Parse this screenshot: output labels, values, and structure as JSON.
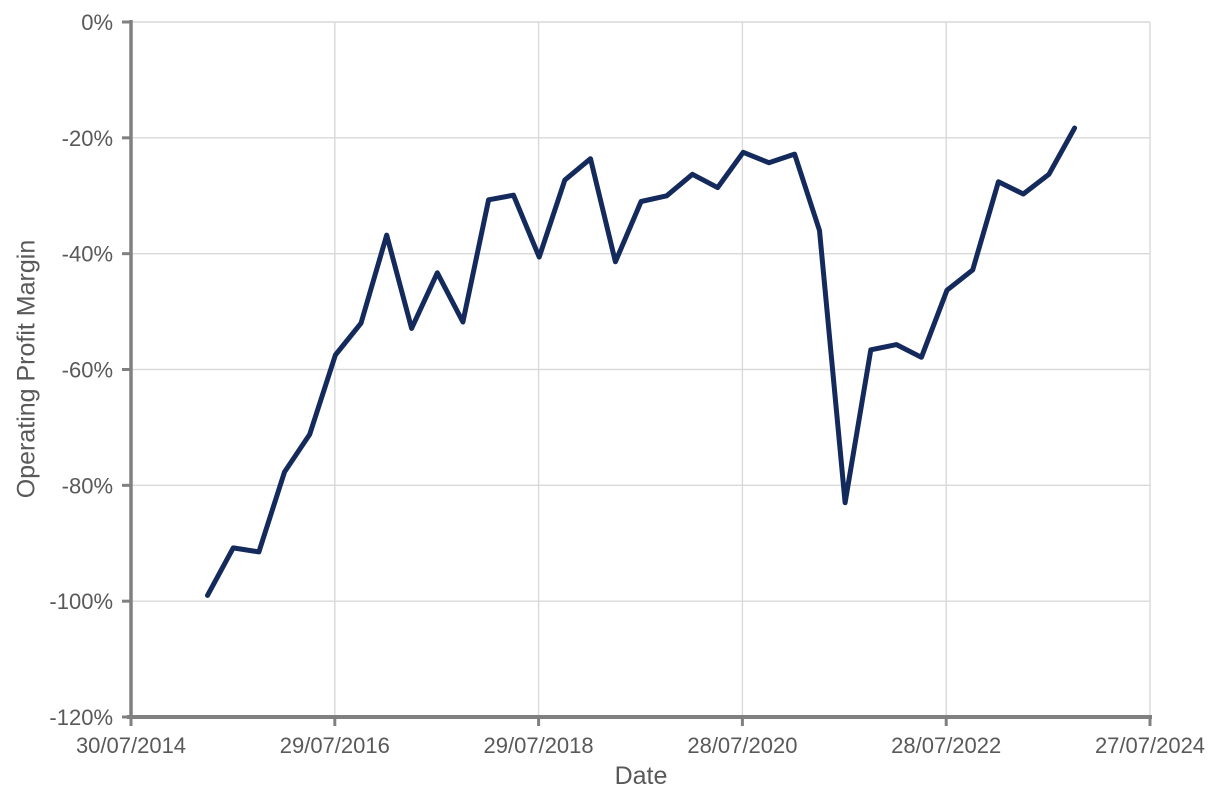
{
  "colors": {
    "line": "#152a5c",
    "grid": "#d9d9d9",
    "axis": "#808080",
    "text": "#595959",
    "background": "#ffffff"
  },
  "chart_data": {
    "type": "line",
    "title": "",
    "xlabel": "Date",
    "ylabel": "Operating Profit Margin",
    "grid": true,
    "legend": "none",
    "ylim": [
      -120,
      0
    ],
    "y_ticks_percent": [
      0,
      -20,
      -40,
      -60,
      -80,
      -100,
      -120
    ],
    "y_tick_labels": [
      "0%",
      "-20%",
      "-40%",
      "-60%",
      "-80%",
      "-100%",
      "-120%"
    ],
    "x_range_dates": [
      "30/07/2014",
      "27/07/2024"
    ],
    "x_tick_labels": [
      "30/07/2014",
      "29/07/2016",
      "29/07/2018",
      "28/07/2020",
      "28/07/2022",
      "27/07/2024"
    ],
    "series": [
      {
        "name": "operating-profit-margin",
        "color": "#152a5c",
        "x_dates": [
          "30/04/2015",
          "31/07/2015",
          "31/10/2015",
          "31/01/2016",
          "30/04/2016",
          "31/07/2016",
          "31/10/2016",
          "31/01/2017",
          "30/04/2017",
          "31/07/2017",
          "31/10/2017",
          "31/01/2018",
          "30/04/2018",
          "31/07/2018",
          "31/10/2018",
          "31/01/2019",
          "30/04/2019",
          "31/07/2019",
          "31/10/2019",
          "31/01/2020",
          "30/04/2020",
          "31/07/2020",
          "31/10/2020",
          "31/01/2021",
          "30/04/2021",
          "31/07/2021",
          "31/10/2021",
          "31/01/2022",
          "30/04/2022",
          "31/07/2022",
          "31/10/2022",
          "31/01/2023",
          "30/04/2023",
          "31/07/2023",
          "31/10/2023"
        ],
        "values_percent": [
          -99.0,
          -90.8,
          -91.5,
          -77.7,
          -71.2,
          -57.5,
          -52.0,
          -36.8,
          -52.9,
          -43.3,
          -51.8,
          -30.7,
          -29.9,
          -40.6,
          -27.3,
          -23.6,
          -41.4,
          -31.0,
          -30.0,
          -26.3,
          -28.6,
          -22.5,
          -24.3,
          -22.8,
          -36.0,
          -83.0,
          -56.6,
          -55.7,
          -57.9,
          -46.3,
          -42.8,
          -27.6,
          -29.7,
          -26.3,
          -18.3
        ]
      }
    ]
  }
}
